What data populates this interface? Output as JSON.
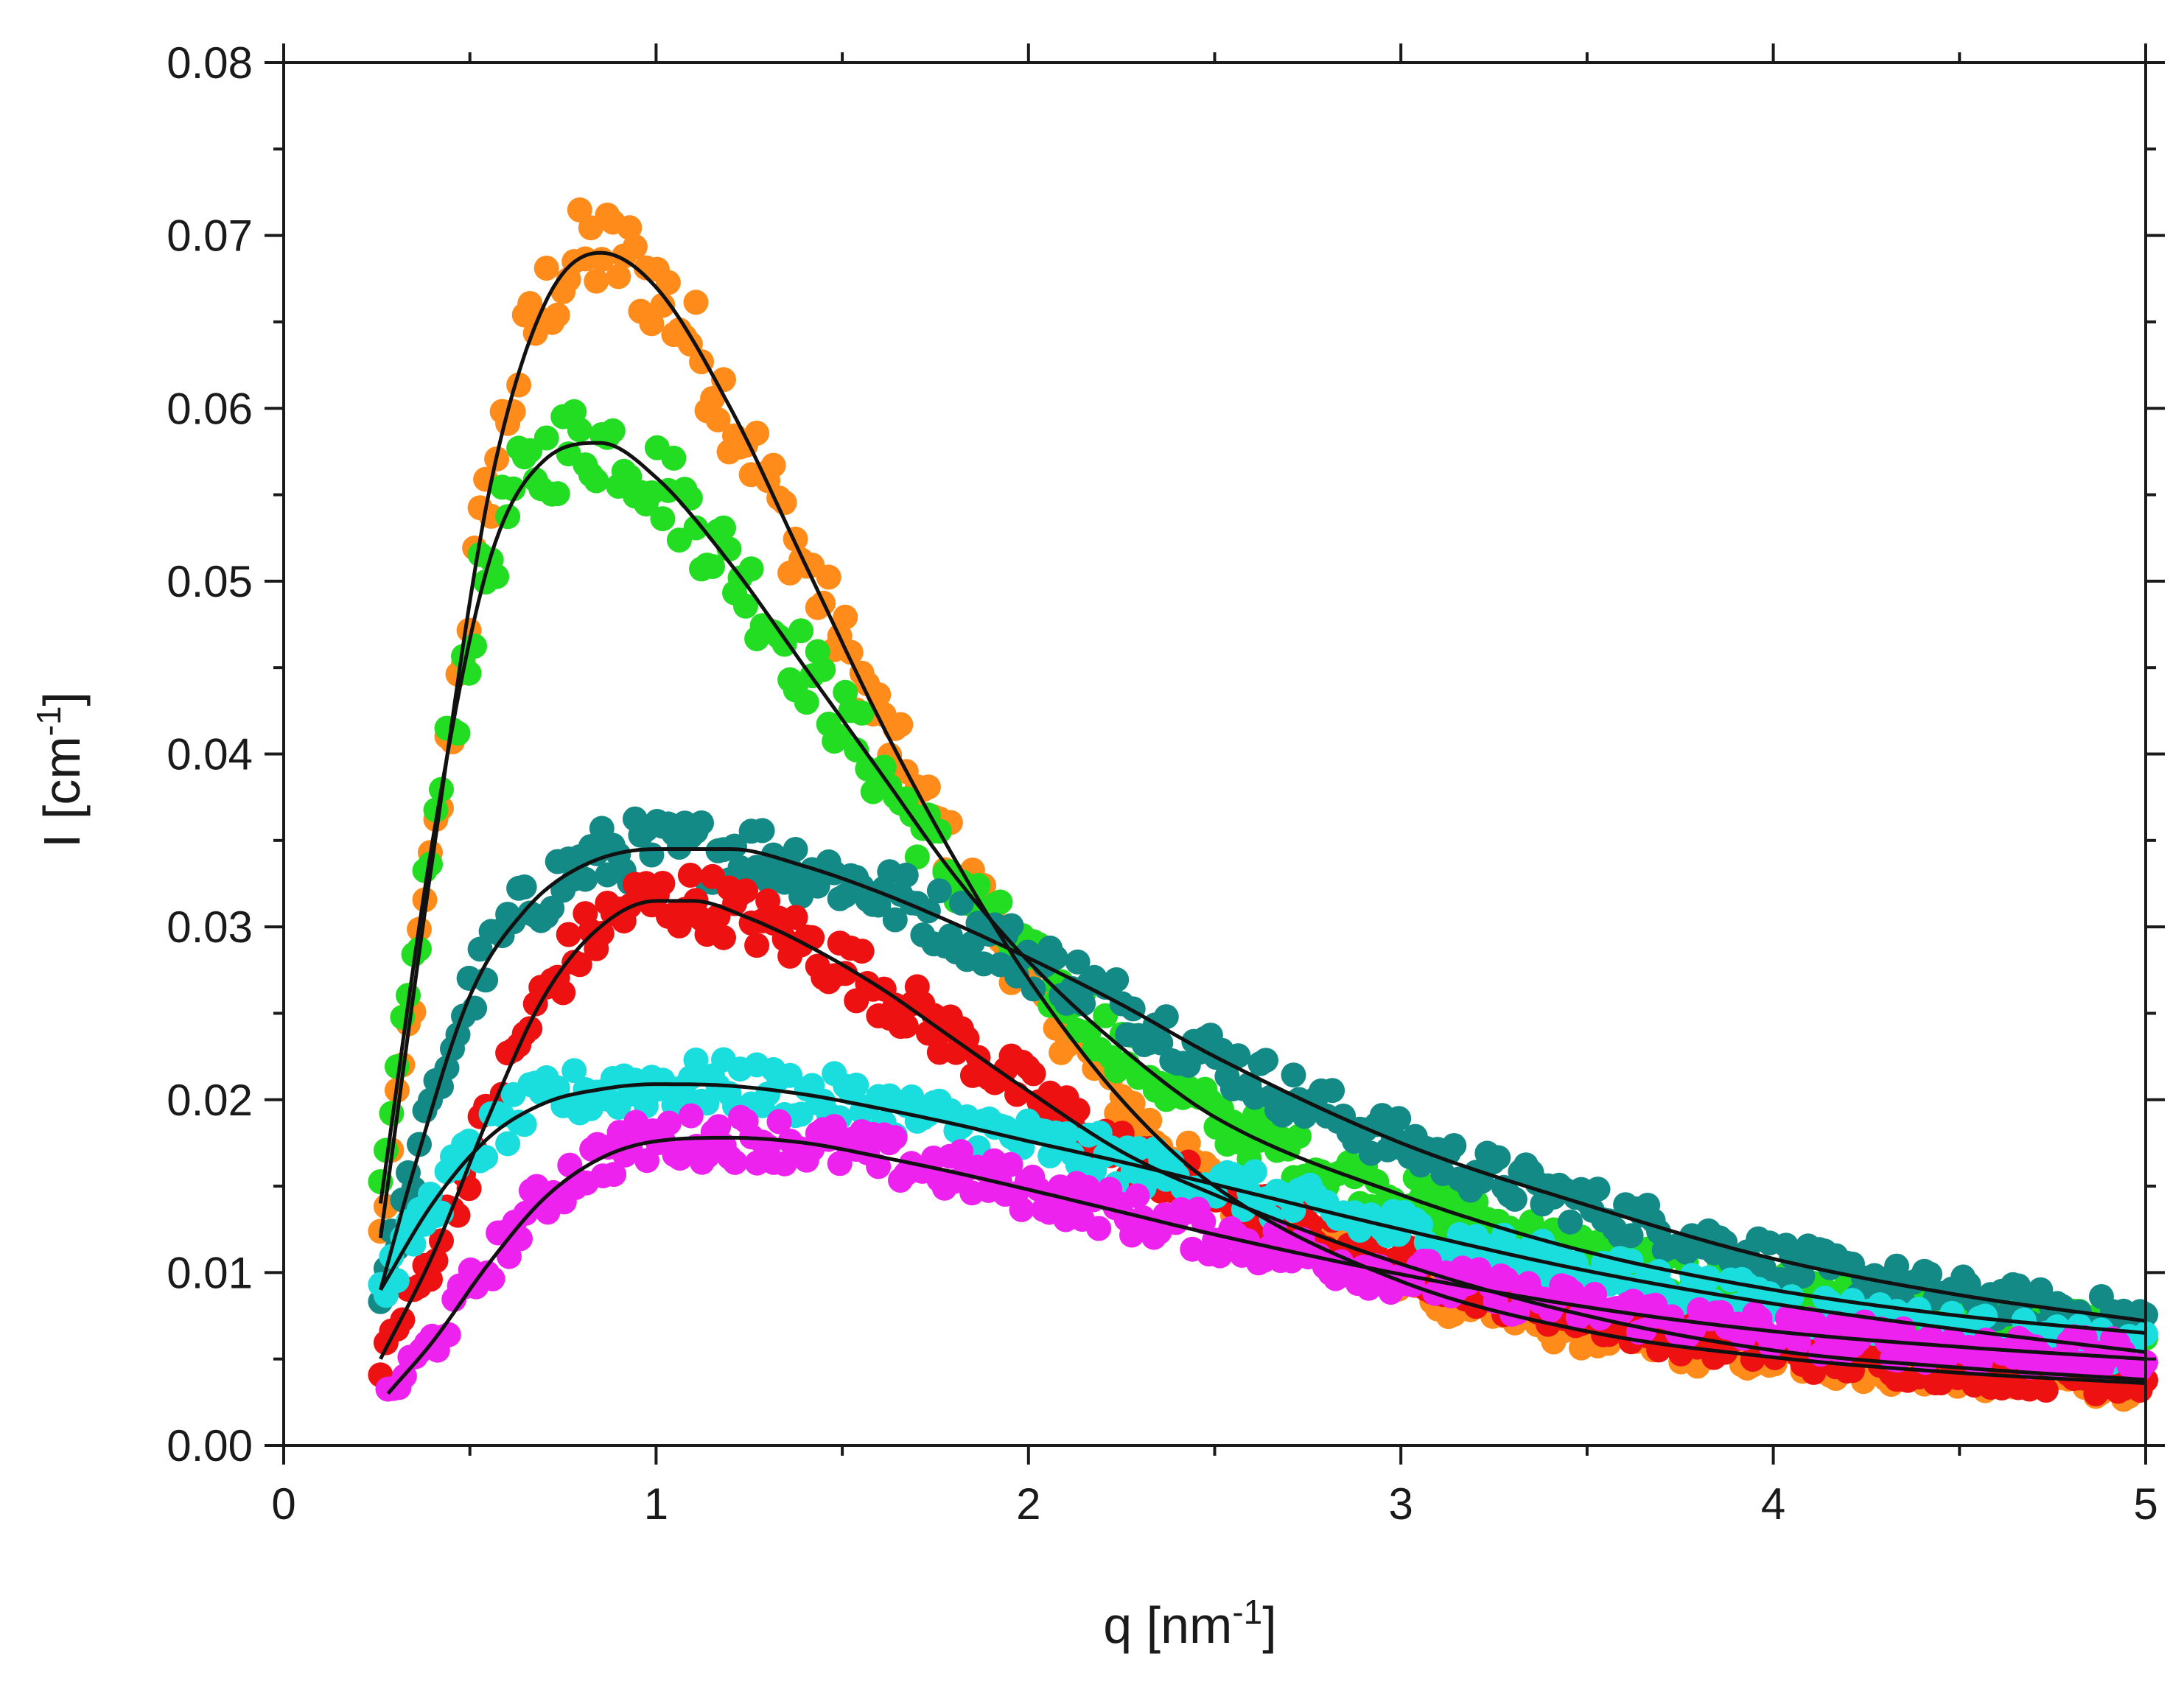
{
  "chart_data": {
    "type": "scatter",
    "title": "",
    "xlabel": "q [nm",
    "xlabel_sup": "-1",
    "xlabel_end": "]",
    "ylabel": "I [cm",
    "ylabel_sup": "-1",
    "ylabel_end": "]",
    "xlim": [
      0,
      5
    ],
    "ylim": [
      0,
      0.08
    ],
    "xticks": [
      0,
      1,
      2,
      3,
      4,
      5
    ],
    "xtick_labels": [
      "0",
      "1",
      "2",
      "3",
      "4",
      "5"
    ],
    "yticks": [
      0,
      0.01,
      0.02,
      0.03,
      0.04,
      0.05,
      0.06,
      0.07,
      0.08
    ],
    "ytick_labels": [
      "0.00",
      "0.01",
      "0.02",
      "0.03",
      "0.04",
      "0.05",
      "0.06",
      "0.07",
      "0.08"
    ],
    "grid": false,
    "legend": "none",
    "fit_color": "#111111",
    "series": [
      {
        "name": "orange",
        "color": "#FF8C1A",
        "x": [
          0.26,
          0.4,
          0.55,
          0.7,
          0.85,
          1.0,
          1.2,
          1.4,
          1.6,
          1.8,
          2.0,
          2.25,
          2.5,
          3.0,
          3.5,
          4.0,
          4.5,
          5.0
        ],
        "y": [
          0.012,
          0.034,
          0.055,
          0.066,
          0.069,
          0.067,
          0.06,
          0.051,
          0.042,
          0.034,
          0.027,
          0.02,
          0.015,
          0.0095,
          0.0066,
          0.0051,
          0.0042,
          0.0036
        ]
      },
      {
        "name": "green",
        "color": "#22DD22",
        "x": [
          0.26,
          0.4,
          0.55,
          0.7,
          0.85,
          1.0,
          1.2,
          1.4,
          1.6,
          1.8,
          2.0,
          2.25,
          2.5,
          3.0,
          3.5,
          4.0,
          4.5,
          5.0
        ],
        "y": [
          0.014,
          0.035,
          0.051,
          0.057,
          0.058,
          0.056,
          0.051,
          0.045,
          0.039,
          0.033,
          0.028,
          0.023,
          0.019,
          0.0145,
          0.0112,
          0.009,
          0.0075,
          0.0065
        ]
      },
      {
        "name": "teal",
        "color": "#138A86",
        "x": [
          0.26,
          0.35,
          0.5,
          0.65,
          0.8,
          1.0,
          1.2,
          1.4,
          1.6,
          1.8,
          2.0,
          2.25,
          2.5,
          3.0,
          3.5,
          4.0,
          4.5,
          5.0
        ],
        "y": [
          0.009,
          0.016,
          0.026,
          0.031,
          0.0335,
          0.0345,
          0.0345,
          0.0335,
          0.032,
          0.0302,
          0.0282,
          0.0255,
          0.0225,
          0.0175,
          0.0139,
          0.0108,
          0.0087,
          0.0072
        ]
      },
      {
        "name": "red",
        "color": "#EE1111",
        "x": [
          0.26,
          0.4,
          0.55,
          0.7,
          0.85,
          1.0,
          1.1,
          1.25,
          1.4,
          1.6,
          1.8,
          2.0,
          2.25,
          2.5,
          3.0,
          3.5,
          4.0,
          4.5,
          5.0
        ],
        "y": [
          0.005,
          0.011,
          0.019,
          0.026,
          0.03,
          0.0315,
          0.0315,
          0.0305,
          0.029,
          0.0265,
          0.0235,
          0.0205,
          0.017,
          0.0145,
          0.0105,
          0.0075,
          0.0055,
          0.0045,
          0.0038
        ]
      },
      {
        "name": "cyan",
        "color": "#1ADDDD",
        "x": [
          0.26,
          0.4,
          0.55,
          0.7,
          0.85,
          1.0,
          1.2,
          1.4,
          1.6,
          1.8,
          2.0,
          2.25,
          2.5,
          3.0,
          3.5,
          4.0,
          4.5,
          5.0
        ],
        "y": [
          0.009,
          0.014,
          0.0178,
          0.0198,
          0.0206,
          0.0209,
          0.0208,
          0.0203,
          0.0195,
          0.0186,
          0.0176,
          0.0164,
          0.0151,
          0.0125,
          0.0101,
          0.0082,
          0.0067,
          0.0054
        ]
      },
      {
        "name": "magenta",
        "color": "#EE22EE",
        "x": [
          0.28,
          0.4,
          0.55,
          0.7,
          0.85,
          1.0,
          1.2,
          1.4,
          1.6,
          1.8,
          2.0,
          2.25,
          2.5,
          3.0,
          3.5,
          4.0,
          4.5,
          5.0
        ],
        "y": [
          0.003,
          0.006,
          0.0105,
          0.0143,
          0.0166,
          0.0176,
          0.0178,
          0.0175,
          0.0167,
          0.0158,
          0.0148,
          0.0135,
          0.0122,
          0.0099,
          0.008,
          0.0066,
          0.0057,
          0.005
        ]
      }
    ]
  }
}
